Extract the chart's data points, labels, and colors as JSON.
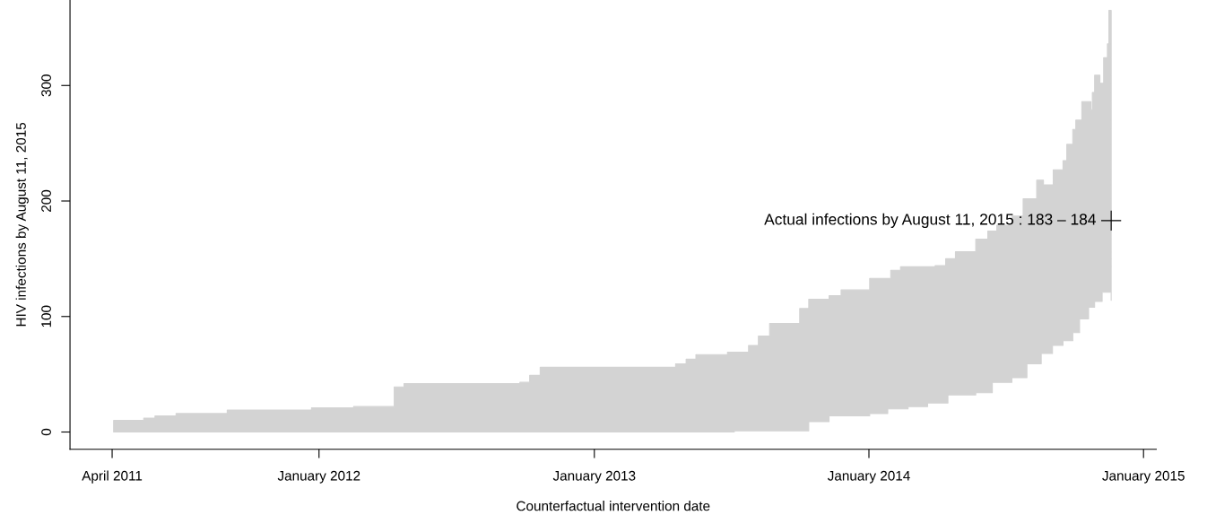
{
  "chart_data": {
    "type": "step",
    "xlabel": "Counterfactual intervention date",
    "ylabel": "HIV infections by August 11, 2015",
    "x": [
      "2011-04-03",
      "2011-05-13",
      "2011-05-28",
      "2011-06-25",
      "2011-09-01",
      "2011-12-22",
      "2012-02-16",
      "2012-04-10",
      "2012-04-23",
      "2012-09-24",
      "2012-10-07",
      "2012-10-21",
      "2013-04-19",
      "2013-05-03",
      "2013-05-16",
      "2013-06-27",
      "2013-07-06",
      "2013-07-25",
      "2013-08-07",
      "2013-08-22",
      "2013-10-01",
      "2013-10-13",
      "2013-11-09",
      "2013-11-25",
      "2014-01-02",
      "2014-01-26",
      "2014-01-30",
      "2014-02-12",
      "2014-02-22",
      "2014-03-20",
      "2014-03-30",
      "2014-04-13",
      "2014-04-16",
      "2014-04-26",
      "2014-05-23",
      "2014-06-08",
      "2014-06-14",
      "2014-06-20",
      "2014-07-10",
      "2014-07-25",
      "2014-07-30",
      "2014-08-12",
      "2014-08-18",
      "2014-08-21",
      "2014-09-02",
      "2014-09-03",
      "2014-09-16",
      "2014-09-21",
      "2014-09-29",
      "2014-10-03",
      "2014-10-08",
      "2014-10-11",
      "2014-10-20",
      "2014-10-23",
      "2014-10-25",
      "2014-10-28",
      "2014-11-04",
      "2014-11-07",
      "2014-11-09",
      "2014-11-14",
      "2014-11-16",
      "2014-11-19"
    ],
    "series": [
      {
        "color": "#d3d3d3",
        "values": [
          null,
          null,
          null,
          null,
          null,
          null,
          null,
          null,
          null,
          null,
          null,
          null,
          null,
          null,
          null,
          null,
          null,
          null,
          null,
          null,
          null,
          null,
          null,
          null,
          null,
          null,
          null,
          null,
          null,
          null,
          null,
          null,
          null,
          null,
          null,
          null,
          null,
          null,
          null,
          null,
          null,
          null,
          null,
          null,
          null,
          null,
          null,
          null,
          null,
          null,
          null,
          null,
          null,
          null,
          null,
          null,
          null,
          null,
          null,
          null,
          null,
          null
        ],
        "upper": [
          10,
          12,
          14,
          16,
          19,
          21,
          22,
          39,
          42,
          43,
          49,
          56,
          59,
          63,
          67,
          69,
          69,
          75,
          83,
          94,
          107,
          115,
          118,
          123,
          133,
          133,
          140,
          143,
          143,
          143,
          144,
          150,
          150,
          156,
          167,
          174,
          174,
          179,
          187,
          202,
          202,
          218,
          218,
          214,
          214,
          227,
          235,
          249,
          262,
          270,
          270,
          286,
          286,
          279,
          294,
          309,
          302,
          302,
          324,
          336,
          365,
          362
        ],
        "lower": [
          0,
          0,
          0,
          0,
          0,
          0,
          0,
          0,
          0,
          0,
          0,
          0,
          0,
          0,
          0,
          0,
          1,
          1,
          1,
          1,
          1,
          9,
          14,
          14,
          16,
          20,
          20,
          20,
          22,
          25,
          25,
          25,
          32,
          32,
          34,
          34,
          43,
          43,
          47,
          47,
          59,
          59,
          68,
          68,
          75,
          75,
          79,
          79,
          86,
          86,
          98,
          98,
          108,
          108,
          108,
          113,
          113,
          121,
          121,
          121,
          121,
          114
        ]
      }
    ],
    "xlim": [
      "2011-02-04",
      "2015-01-18"
    ],
    "xticks": [
      {
        "value": "2011-04-01",
        "label": "April 2011"
      },
      {
        "value": "2012-01-01",
        "label": "January 2012"
      },
      {
        "value": "2013-01-01",
        "label": "January 2013"
      },
      {
        "value": "2014-01-01",
        "label": "January 2014"
      },
      {
        "value": "2015-01-01",
        "label": "January 2015"
      }
    ],
    "ylim": [
      -15,
      374
    ],
    "yticks": [
      0,
      100,
      200,
      300
    ],
    "annotations": [
      {
        "text": "Actual infections by August 11, 2015 : 183 – 184",
        "x": "2014-11-19",
        "y": 183
      }
    ]
  }
}
